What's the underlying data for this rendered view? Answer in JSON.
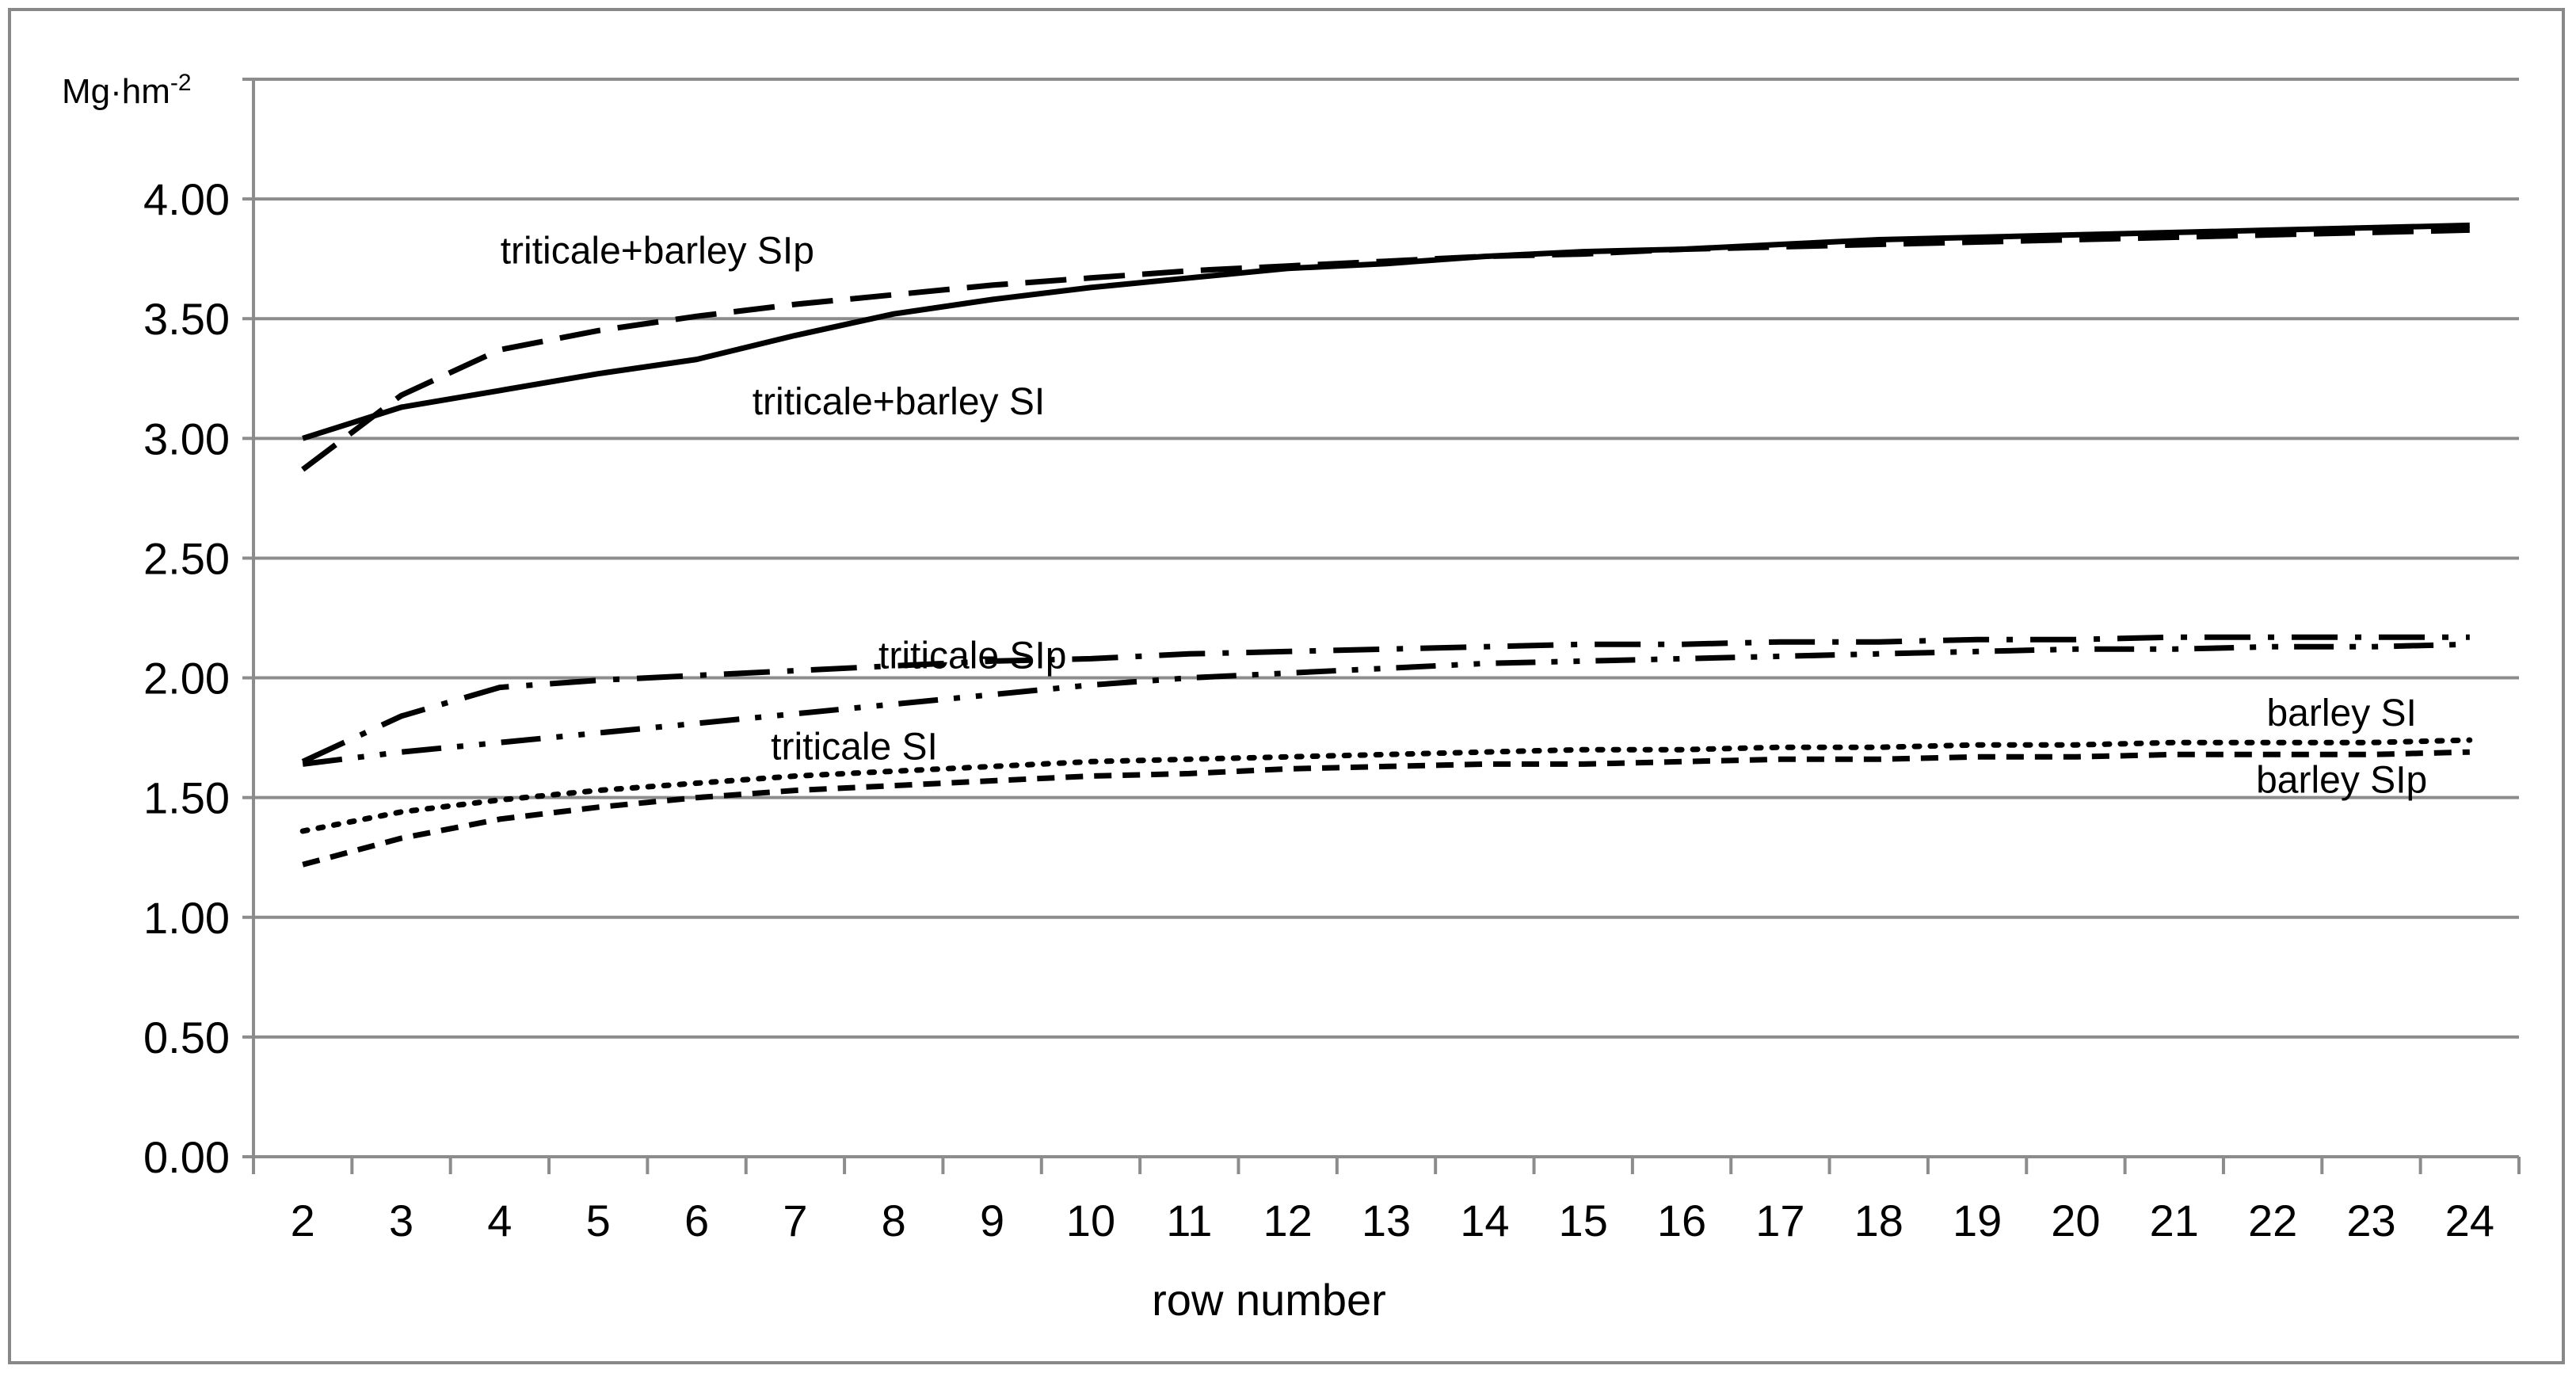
{
  "chart_data": {
    "type": "line",
    "title": "",
    "ylabel": "Mg·hm",
    "ylabel_sup": "-2",
    "xlabel": "row number",
    "ylim": [
      0,
      4.5
    ],
    "yticks": [
      0,
      0.5,
      1,
      1.5,
      2,
      2.5,
      3,
      3.5,
      4
    ],
    "ytick_labels": [
      "0.00",
      "0.50",
      "1.00",
      "1.50",
      "2.00",
      "2.50",
      "3.00",
      "3.50",
      "4.00"
    ],
    "x": [
      2,
      3,
      4,
      5,
      6,
      7,
      8,
      9,
      10,
      11,
      12,
      13,
      14,
      15,
      16,
      17,
      18,
      19,
      20,
      21,
      22,
      23,
      24
    ],
    "grid": true,
    "series": [
      {
        "name": "triticale+barley SI",
        "style": "solid",
        "values": [
          3.0,
          3.13,
          3.2,
          3.27,
          3.33,
          3.43,
          3.52,
          3.58,
          3.63,
          3.67,
          3.71,
          3.73,
          3.76,
          3.78,
          3.79,
          3.81,
          3.83,
          3.84,
          3.85,
          3.86,
          3.87,
          3.88,
          3.89
        ]
      },
      {
        "name": "triticale+barley SIp",
        "style": "dashed",
        "values": [
          2.87,
          3.18,
          3.37,
          3.45,
          3.51,
          3.56,
          3.6,
          3.64,
          3.67,
          3.7,
          3.72,
          3.74,
          3.76,
          3.77,
          3.79,
          3.8,
          3.81,
          3.82,
          3.83,
          3.84,
          3.85,
          3.86,
          3.87
        ]
      },
      {
        "name": "triticale SIp",
        "style": "dashdot",
        "values": [
          1.65,
          1.84,
          1.96,
          1.99,
          2.01,
          2.03,
          2.05,
          2.07,
          2.08,
          2.1,
          2.11,
          2.12,
          2.13,
          2.14,
          2.14,
          2.15,
          2.15,
          2.16,
          2.16,
          2.17,
          2.17,
          2.17,
          2.17
        ]
      },
      {
        "name": "triticale SI",
        "style": "dashdotdot",
        "values": [
          1.64,
          1.69,
          1.73,
          1.77,
          1.81,
          1.85,
          1.89,
          1.93,
          1.97,
          2.0,
          2.02,
          2.04,
          2.06,
          2.07,
          2.08,
          2.09,
          2.1,
          2.11,
          2.12,
          2.12,
          2.13,
          2.13,
          2.14
        ]
      },
      {
        "name": "barley SI",
        "style": "dotted",
        "values": [
          1.36,
          1.44,
          1.49,
          1.53,
          1.56,
          1.59,
          1.61,
          1.63,
          1.65,
          1.66,
          1.67,
          1.68,
          1.69,
          1.7,
          1.7,
          1.71,
          1.71,
          1.72,
          1.72,
          1.73,
          1.73,
          1.73,
          1.74
        ]
      },
      {
        "name": "barley SIp",
        "style": "shortdash",
        "values": [
          1.22,
          1.33,
          1.41,
          1.46,
          1.5,
          1.53,
          1.55,
          1.57,
          1.59,
          1.6,
          1.62,
          1.63,
          1.64,
          1.64,
          1.65,
          1.66,
          1.66,
          1.67,
          1.67,
          1.68,
          1.68,
          1.68,
          1.69
        ]
      }
    ],
    "annotations": [
      {
        "text": "triticale+barley SIp",
        "x": 5.6,
        "y": 3.73
      },
      {
        "text": "triticale+barley SI",
        "x": 8.05,
        "y": 3.1
      },
      {
        "text": "triticale SIp",
        "x": 8.8,
        "y": 2.04
      },
      {
        "text": "triticale SI",
        "x": 7.6,
        "y": 1.66
      },
      {
        "text": "barley SI",
        "x": 22.7,
        "y": 1.8
      },
      {
        "text": "barley SIp",
        "x": 22.7,
        "y": 1.52
      }
    ]
  }
}
